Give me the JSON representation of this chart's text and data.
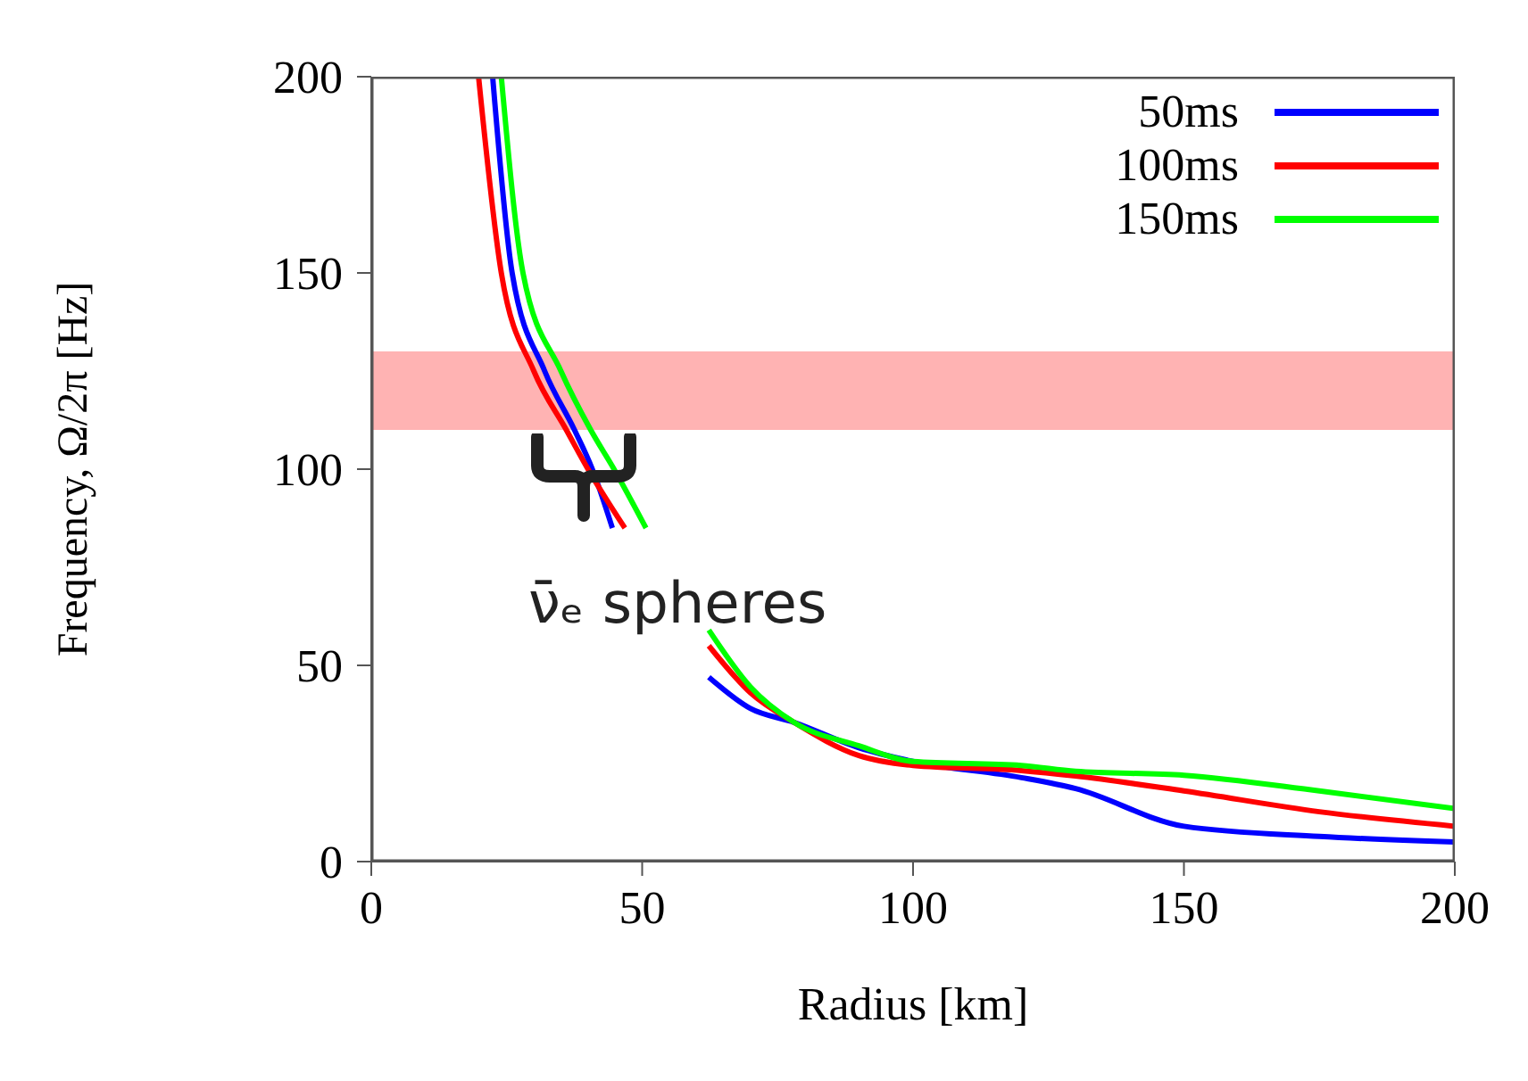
{
  "chart_data": {
    "type": "line",
    "xlabel": "Radius [km]",
    "ylabel": "Frequency, Ω/2π  [Hz]",
    "xlim": [
      0,
      200
    ],
    "ylim": [
      0,
      200
    ],
    "xticks": [
      0,
      50,
      100,
      150,
      200
    ],
    "yticks": [
      0,
      50,
      100,
      150,
      200
    ],
    "grid": false,
    "legend": "top right",
    "marker": "none",
    "line_style": "solid",
    "bands": [
      {
        "axis": "y",
        "from": 110,
        "to": 130,
        "color": "#ffb3b3"
      }
    ],
    "annotations": [
      "ν̄ₑ spheres"
    ],
    "series": [
      {
        "name": "50ms",
        "color": "#0000ff",
        "x": [
          22.4,
          26,
          32,
          37.5,
          40.8,
          44.5,
          null,
          62.3,
          70,
          78,
          90,
          100,
          120,
          130,
          150,
          175,
          200
        ],
        "values": [
          200,
          150,
          125,
          110,
          100,
          85,
          null,
          47,
          39,
          35.5,
          29,
          25.5,
          21.4,
          18.6,
          9,
          6.4,
          5
        ]
      },
      {
        "name": "100ms",
        "color": "#ff0000",
        "x": [
          19.8,
          24,
          30,
          36,
          40,
          46.8,
          null,
          62.3,
          70,
          78,
          90,
          100,
          120,
          130,
          150,
          175,
          200
        ],
        "values": [
          200,
          150,
          125,
          110,
          100,
          85,
          null,
          55,
          43,
          35.5,
          27,
          24.5,
          23.2,
          21.8,
          18,
          12.7,
          9
        ]
      },
      {
        "name": "150ms",
        "color": "#00ff00",
        "x": [
          24,
          28,
          35,
          40.5,
          44.8,
          50.7,
          null,
          62.3,
          70,
          78,
          90,
          100,
          120,
          130,
          150,
          175,
          200
        ],
        "values": [
          200,
          150,
          125,
          110,
          100,
          85,
          null,
          59,
          44.5,
          35.5,
          29.5,
          25.5,
          24.5,
          23,
          22,
          18,
          13.5
        ]
      }
    ]
  }
}
